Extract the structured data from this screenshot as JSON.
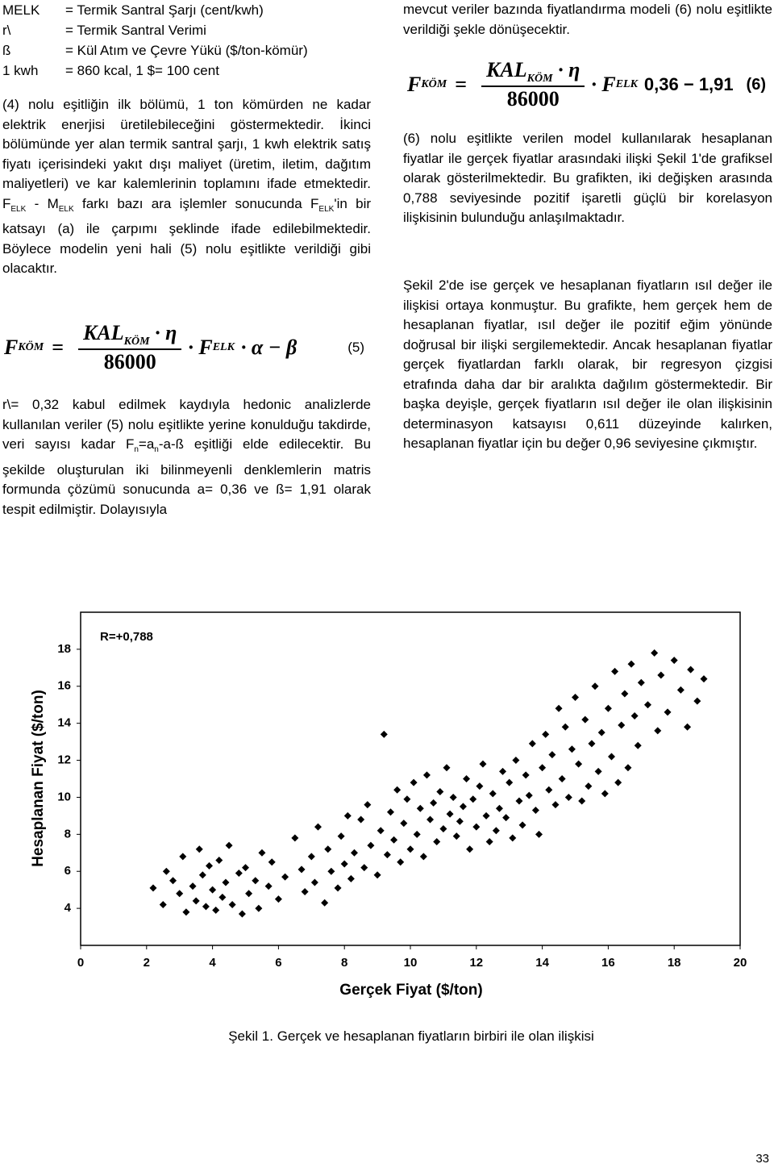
{
  "definitions": [
    {
      "term": "MELK",
      "text": "= Termik Santral Şarjı (cent/kwh)"
    },
    {
      "term": "r\\",
      "text": "= Termik Santral Verimi"
    },
    {
      "term": "ß",
      "text": "= Kül Atım ve Çevre Yükü ($/ton-kömür)"
    },
    {
      "term": "1 kwh",
      "text": "= 860 kcal, 1 $= 100 cent"
    }
  ],
  "left_paragraph_1": [
    "(4) nolu eşitliğin ilk bölümü, 1 ton kömürden ne kadar elektrik enerjisi üretilebileceğini göstermektedir. İkinci bölümünde yer alan termik santral şarjı, 1 kwh elektrik satış fiyatı içerisindeki yakıt dışı maliyet (üretim, iletim, dağıtım maliyetleri) ve kar kalemlerinin toplamını ifade etmektedir. F",
    {
      "sub": "ELK"
    },
    " - M",
    {
      "sub": "ELK"
    },
    " farkı bazı ara işlemler sonucunda F",
    {
      "sub": "ELK"
    },
    "'in bir katsayı (a) ile çarpımı şeklinde ifade edilebilmektedir. Böylece modelin yeni hali (5) nolu eşitlikte verildiği gibi olacaktır."
  ],
  "formula_5": {
    "lhs": "F",
    "lhs_sub": "KÖM",
    "eq": "=",
    "num": "KAL",
    "num_sub": "KÖM",
    "num_rest": "· η",
    "den": "86000",
    "rhs": "· F",
    "rhs_sub": "ELK",
    "tail": "· α − β",
    "number": "(5)"
  },
  "left_paragraph_2": [
    "r\\= 0,32 kabul edilmek kaydıyla hedonic analizlerde kullanılan veriler (5) nolu eşitlikte yerine konulduğu takdirde, veri sayısı kadar F",
    {
      "sub": "n"
    },
    "=a",
    {
      "sub": "n"
    },
    "-a-ß eşitliği elde edilecektir. Bu şekilde oluşturulan iki bilinmeyenli denklemlerin matris formunda çözümü sonucunda a= 0,36 ve ß= 1,91 olarak tespit edilmiştir. Dolayısıyla"
  ],
  "right_paragraph_0": [
    "mevcut veriler bazında fiyatlandırma modeli (6) nolu eşitlikte verildiği şekle dönüşecektir."
  ],
  "formula_6": {
    "lhs": "F",
    "lhs_sub": "KÖM",
    "eq": "=",
    "num": "KAL",
    "num_sub": "KÖM",
    "num_rest": "· η",
    "den": "86000",
    "rhs": "· F",
    "rhs_sub": "ELK",
    "tail": "0,36 − 1,91",
    "number": "(6)"
  },
  "right_paragraph_1": [
    "(6) nolu eşitlikte verilen model kullanılarak hesaplanan fiyatlar ile gerçek fiyatlar arasındaki ilişki Şekil 1'de grafiksel olarak gösterilmektedir. Bu grafikten, iki değişken arasında 0,788 seviyesinde pozitif işaretli güçlü bir korelasyon ilişkisinin bulunduğu anlaşılmaktadır."
  ],
  "right_paragraph_2": [
    "Şekil 2'de ise gerçek ve hesaplanan fiyatların ısıl değer ile ilişkisi ortaya konmuştur. Bu grafikte, hem gerçek hem de hesaplanan fiyatlar, ısıl değer ile pozitif eğim yönünde doğrusal bir ilişki sergilemektedir. Ancak hesaplanan fiyatlar gerçek fiyatlardan farklı olarak, bir regresyon çizgisi etrafında daha dar bir aralıkta dağılım göstermektedir. Bir başka deyişle, gerçek fiyatların ısıl değer ile olan ilişkisinin determinasyon katsayısı 0,611 düzeyinde kalırken, hesaplanan fiyatlar için bu değer 0,96 seviyesine çıkmıştır."
  ],
  "chart_data": {
    "type": "scatter",
    "annotation": "R=+0,788",
    "x_label": "Gerçek Fiyat ($/ton)",
    "y_label": "Hesaplanan Fiyat ($/ton)",
    "color": "#000000",
    "xlim": [
      0,
      20
    ],
    "xticks": [
      0,
      2,
      4,
      6,
      8,
      10,
      12,
      14,
      16,
      18,
      20
    ],
    "ylim": [
      2,
      20
    ],
    "yticks": [
      4,
      6,
      8,
      10,
      12,
      14,
      16,
      18
    ],
    "x": [
      2.2,
      2.5,
      2.6,
      2.8,
      3.0,
      3.1,
      3.2,
      3.4,
      3.5,
      3.6,
      3.7,
      3.8,
      3.9,
      4.0,
      4.1,
      4.2,
      4.3,
      4.4,
      4.5,
      4.6,
      4.8,
      4.9,
      5.0,
      5.1,
      5.3,
      5.4,
      5.5,
      5.7,
      5.8,
      6.0,
      6.2,
      6.5,
      6.7,
      6.8,
      7.0,
      7.1,
      7.2,
      7.4,
      7.5,
      7.6,
      7.8,
      7.9,
      8.0,
      8.1,
      8.2,
      8.3,
      8.5,
      8.6,
      8.7,
      8.8,
      9.0,
      9.1,
      9.2,
      9.3,
      9.4,
      9.5,
      9.6,
      9.7,
      9.8,
      9.9,
      10.0,
      10.1,
      10.2,
      10.3,
      10.4,
      10.5,
      10.6,
      10.7,
      10.8,
      10.9,
      11.0,
      11.1,
      11.2,
      11.3,
      11.4,
      11.5,
      11.6,
      11.7,
      11.8,
      11.9,
      12.0,
      12.1,
      12.2,
      12.3,
      12.4,
      12.5,
      12.6,
      12.7,
      12.8,
      12.9,
      13.0,
      13.1,
      13.2,
      13.3,
      13.4,
      13.5,
      13.6,
      13.7,
      13.8,
      13.9,
      14.0,
      14.1,
      14.2,
      14.3,
      14.4,
      14.5,
      14.6,
      14.7,
      14.8,
      14.9,
      15.0,
      15.1,
      15.2,
      15.3,
      15.4,
      15.5,
      15.6,
      15.7,
      15.8,
      15.9,
      16.0,
      16.1,
      16.2,
      16.3,
      16.4,
      16.5,
      16.6,
      16.7,
      16.8,
      16.9,
      17.0,
      17.2,
      17.4,
      17.5,
      17.6,
      17.8,
      18.0,
      18.2,
      18.4,
      18.5,
      18.7,
      18.9
    ],
    "y": [
      5.1,
      4.2,
      6.0,
      5.5,
      4.8,
      6.8,
      3.8,
      5.2,
      4.4,
      7.2,
      5.8,
      4.1,
      6.3,
      5.0,
      3.9,
      6.6,
      4.6,
      5.4,
      7.4,
      4.2,
      5.9,
      3.7,
      6.2,
      4.8,
      5.5,
      4.0,
      7.0,
      5.2,
      6.5,
      4.5,
      5.7,
      7.8,
      6.1,
      4.9,
      6.8,
      5.4,
      8.4,
      4.3,
      7.2,
      6.0,
      5.1,
      7.9,
      6.4,
      9.0,
      5.6,
      7.0,
      8.8,
      6.2,
      9.6,
      7.4,
      5.8,
      8.2,
      13.4,
      6.9,
      9.2,
      7.7,
      10.4,
      6.5,
      8.6,
      9.9,
      7.2,
      10.8,
      8.0,
      9.4,
      6.8,
      11.2,
      8.8,
      9.7,
      7.6,
      10.3,
      8.3,
      11.6,
      9.1,
      10.0,
      7.9,
      8.7,
      9.5,
      11.0,
      7.2,
      9.9,
      8.4,
      10.6,
      11.8,
      9.0,
      7.6,
      10.2,
      8.2,
      9.4,
      11.4,
      8.9,
      10.8,
      7.8,
      12.0,
      9.8,
      8.5,
      11.2,
      10.1,
      12.9,
      9.3,
      8.0,
      11.6,
      13.4,
      10.4,
      12.3,
      9.6,
      14.8,
      11.0,
      13.8,
      10.0,
      12.6,
      15.4,
      11.8,
      9.8,
      14.2,
      10.6,
      12.9,
      16.0,
      11.4,
      13.5,
      10.2,
      14.8,
      12.2,
      16.8,
      10.8,
      13.9,
      15.6,
      11.6,
      17.2,
      14.4,
      12.8,
      16.2,
      15.0,
      17.8,
      13.6,
      16.6,
      14.6,
      17.4,
      15.8,
      13.8,
      16.9,
      15.2,
      16.4
    ]
  },
  "caption": "Şekil 1. Gerçek ve hesaplanan fiyatların birbiri ile olan ilişkisi",
  "page_number": "33"
}
